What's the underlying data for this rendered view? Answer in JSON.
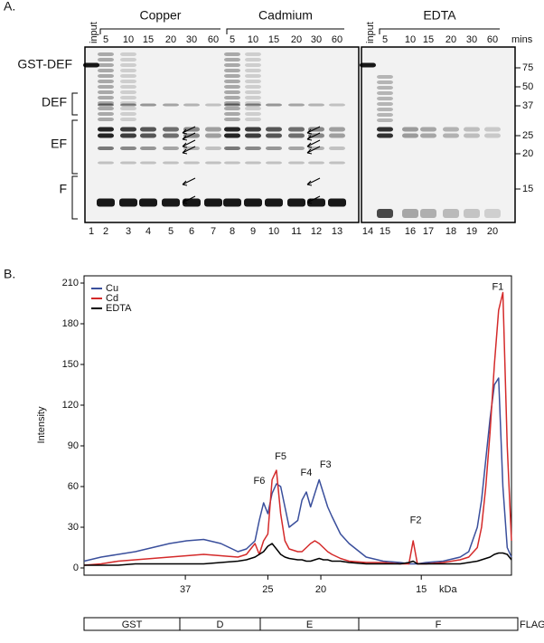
{
  "gel": {
    "panel_label": "A.",
    "input_labels": [
      "input",
      "input"
    ],
    "groups": [
      {
        "name": "Copper",
        "times": [
          5,
          10,
          15,
          20,
          30,
          60
        ]
      },
      {
        "name": "Cadmium",
        "times": [
          5,
          10,
          15,
          20,
          30,
          60
        ]
      },
      {
        "name": "EDTA",
        "times": [
          5,
          10,
          15,
          20,
          30,
          60
        ]
      }
    ],
    "time_unit": "mins",
    "left_labels": [
      "GST-DEF",
      "DEF",
      "EF",
      "F"
    ],
    "mw_markers": [
      75,
      50,
      37,
      25,
      20,
      15
    ],
    "lanes": [
      1,
      2,
      3,
      4,
      5,
      6,
      7,
      8,
      9,
      10,
      11,
      12,
      13,
      14,
      15,
      16,
      17,
      18,
      19,
      20
    ]
  },
  "chart_data": {
    "type": "line",
    "panel_label": "B.",
    "y_label": "Intensity",
    "x_label": "kDa",
    "x": [
      0,
      4,
      8,
      12,
      16,
      20,
      24,
      28,
      32,
      36,
      38,
      40,
      41,
      42,
      43,
      44,
      45,
      46,
      47,
      48,
      50,
      51,
      52,
      53,
      54,
      55,
      56,
      57,
      58,
      60,
      62,
      66,
      70,
      74,
      76,
      77,
      78,
      80,
      84,
      88,
      90,
      92,
      93,
      94,
      95,
      96,
      97,
      98,
      99,
      100
    ],
    "xlim": [
      0,
      100
    ],
    "xticks": [
      {
        "value": 23.7,
        "label": "37"
      },
      {
        "value": 43.0,
        "label": "25"
      },
      {
        "value": 55.4,
        "label": "20"
      },
      {
        "value": 78.9,
        "label": "15"
      }
    ],
    "ylim": [
      0,
      210
    ],
    "yticks": [
      0,
      30,
      60,
      90,
      120,
      150,
      180,
      210
    ],
    "legend": "top-left",
    "series": [
      {
        "name": "Cu",
        "color": "#3a4f9c",
        "values": [
          5,
          8,
          10,
          12,
          15,
          18,
          20,
          21,
          18,
          12,
          14,
          20,
          35,
          48,
          40,
          55,
          62,
          60,
          45,
          30,
          35,
          50,
          56,
          45,
          55,
          65,
          55,
          45,
          38,
          25,
          18,
          8,
          5,
          4,
          3,
          3,
          3,
          4,
          5,
          8,
          12,
          30,
          50,
          80,
          110,
          135,
          140,
          60,
          15,
          8
        ]
      },
      {
        "name": "Cd",
        "color": "#d42a2a",
        "values": [
          2,
          3,
          5,
          6,
          7,
          8,
          9,
          10,
          9,
          8,
          10,
          18,
          10,
          20,
          25,
          65,
          72,
          40,
          20,
          14,
          12,
          12,
          15,
          18,
          20,
          18,
          15,
          12,
          10,
          7,
          5,
          4,
          4,
          3,
          3,
          20,
          3,
          3,
          4,
          6,
          8,
          15,
          30,
          60,
          100,
          150,
          190,
          203,
          90,
          20
        ]
      },
      {
        "name": "EDTA",
        "color": "#000000",
        "values": [
          2,
          2,
          2,
          3,
          3,
          3,
          3,
          3,
          4,
          5,
          6,
          8,
          10,
          12,
          16,
          18,
          14,
          10,
          8,
          7,
          6,
          6,
          5,
          5,
          6,
          7,
          6,
          6,
          5,
          5,
          4,
          3,
          3,
          3,
          4,
          5,
          3,
          3,
          3,
          3,
          4,
          5,
          6,
          7,
          8,
          10,
          11,
          11,
          10,
          6
        ]
      }
    ],
    "annotations": [
      {
        "text": "F1",
        "x": 96.8,
        "y": 207
      },
      {
        "text": "F2",
        "x": 77.6,
        "y": 35
      },
      {
        "text": "F3",
        "x": 56.5,
        "y": 76
      },
      {
        "text": "F4",
        "x": 52.0,
        "y": 70
      },
      {
        "text": "F5",
        "x": 46.0,
        "y": 82
      },
      {
        "text": "F6",
        "x": 41.0,
        "y": 64
      }
    ]
  },
  "domains": {
    "segments": [
      "GST",
      "D",
      "E",
      "F"
    ],
    "tag": "FLAG"
  }
}
